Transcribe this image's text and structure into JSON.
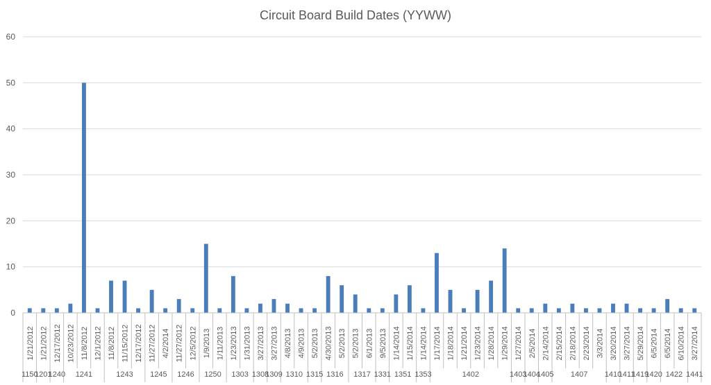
{
  "chart_data": {
    "type": "bar",
    "title": "Circuit Board Build Dates (YYWW)",
    "xlabel": "",
    "ylabel": "",
    "ylim": [
      0,
      60
    ],
    "yticks": [
      0,
      10,
      20,
      30,
      40,
      50,
      60
    ],
    "grid": true,
    "legend": "none",
    "bar_color": "#4a7ebb",
    "grid_color": "#d9d9d9",
    "axis_color": "#bfbfbf",
    "text_color": "#595959",
    "groups": [
      {
        "label": "1150",
        "categories": [
          "1/21/2012"
        ],
        "values": [
          1
        ]
      },
      {
        "label": "1201",
        "categories": [
          "1/21/2012"
        ],
        "values": [
          1
        ]
      },
      {
        "label": "1240",
        "categories": [
          "12/17/2012"
        ],
        "values": [
          1
        ]
      },
      {
        "label": "1241",
        "categories": [
          "10/23/2012",
          "11/8/2012",
          "12/1/2012"
        ],
        "values": [
          2,
          50,
          1
        ]
      },
      {
        "label": "1243",
        "categories": [
          "11/8/2012",
          "11/15/2012",
          "12/17/2012"
        ],
        "values": [
          7,
          7,
          1
        ]
      },
      {
        "label": "1245",
        "categories": [
          "11/27/2012",
          "4/2/2014"
        ],
        "values": [
          5,
          1
        ]
      },
      {
        "label": "1246",
        "categories": [
          "11/27/2012",
          "12/5/2012"
        ],
        "values": [
          3,
          1
        ]
      },
      {
        "label": "1250",
        "categories": [
          "1/9/2013",
          "1/11/2013"
        ],
        "values": [
          15,
          1
        ]
      },
      {
        "label": "1303",
        "categories": [
          "1/23/2013",
          "1/31/2013"
        ],
        "values": [
          8,
          1
        ]
      },
      {
        "label": "1308",
        "categories": [
          "3/27/2013"
        ],
        "values": [
          2
        ]
      },
      {
        "label": "1309",
        "categories": [
          "3/27/2013"
        ],
        "values": [
          3
        ]
      },
      {
        "label": "1310",
        "categories": [
          "4/8/2013",
          "4/9/2013"
        ],
        "values": [
          2,
          1
        ]
      },
      {
        "label": "1315",
        "categories": [
          "5/2/2013"
        ],
        "values": [
          1
        ]
      },
      {
        "label": "1316",
        "categories": [
          "4/30/2013",
          "5/2/2013"
        ],
        "values": [
          8,
          6
        ]
      },
      {
        "label": "1317",
        "categories": [
          "5/2/2013",
          "6/1/2013"
        ],
        "values": [
          4,
          1
        ]
      },
      {
        "label": "1331",
        "categories": [
          "9/5/2013"
        ],
        "values": [
          1
        ]
      },
      {
        "label": "1351",
        "categories": [
          "1/14/2014",
          "1/15/2014"
        ],
        "values": [
          4,
          6
        ]
      },
      {
        "label": "1353",
        "categories": [
          "1/14/2014"
        ],
        "values": [
          1
        ]
      },
      {
        "label": "1402",
        "categories": [
          "1/17/2014",
          "1/18/2014",
          "1/21/2014",
          "1/23/2014",
          "1/28/2014",
          "1/29/2014"
        ],
        "values": [
          13,
          5,
          1,
          5,
          7,
          14
        ]
      },
      {
        "label": "1403",
        "categories": [
          "1/27/2014"
        ],
        "values": [
          1
        ]
      },
      {
        "label": "1404",
        "categories": [
          "2/5/2014"
        ],
        "values": [
          1
        ]
      },
      {
        "label": "1405",
        "categories": [
          "2/14/2014"
        ],
        "values": [
          2
        ]
      },
      {
        "label": "1407",
        "categories": [
          "2/15/2014",
          "2/18/2014",
          "2/23/2014",
          "3/3/2014"
        ],
        "values": [
          1,
          2,
          1,
          1
        ]
      },
      {
        "label": "1410",
        "categories": [
          "3/20/2014"
        ],
        "values": [
          2
        ]
      },
      {
        "label": "1411",
        "categories": [
          "3/27/2014"
        ],
        "values": [
          2
        ]
      },
      {
        "label": "1419",
        "categories": [
          "5/29/2014"
        ],
        "values": [
          1
        ]
      },
      {
        "label": "1420",
        "categories": [
          "6/5/2014"
        ],
        "values": [
          1
        ]
      },
      {
        "label": "1422",
        "categories": [
          "6/5/2014",
          "6/10/2014"
        ],
        "values": [
          3,
          1
        ]
      },
      {
        "label": "1441",
        "categories": [
          "3/27/2014"
        ],
        "values": [
          1
        ]
      }
    ]
  }
}
